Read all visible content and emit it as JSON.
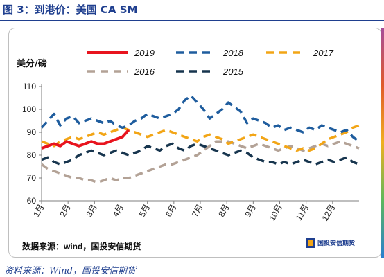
{
  "header": {
    "figure_title": "图 3：到港价：美国 CA SM"
  },
  "footer": {
    "source": "资料来源：Wind，国投安信期货"
  },
  "watermark": {
    "text": "数据来源：wind，国投安信期货",
    "logo_text": "国投安信期货"
  },
  "colors": {
    "title": "#1f3f8f",
    "s2019": "#e8141e",
    "s2018": "#1f5d9e",
    "s2017": "#f2a516",
    "s2016": "#b3a296",
    "s2015": "#17354e"
  },
  "chart_data": {
    "type": "line",
    "unit_label": "美分/磅",
    "xlabel": "",
    "ylabel": "",
    "ylim": [
      60,
      110
    ],
    "yticks": [
      "60",
      "70",
      "80",
      "90",
      "100",
      "110"
    ],
    "xticks": [
      "1月",
      "2月",
      "3月",
      "4月",
      "5月",
      "6月",
      "7月",
      "8月",
      "9月",
      "10月",
      "11月",
      "12月"
    ],
    "x_unit": "weeks since Jan 1",
    "legend_position": "top",
    "series": [
      {
        "name": "2019",
        "style": "solid",
        "color": "#e8141e",
        "x": [
          0,
          1,
          2,
          3,
          4,
          5,
          6,
          7,
          8,
          9,
          10,
          11,
          12,
          13,
          14
        ],
        "y": [
          83,
          84,
          85,
          84,
          86,
          85,
          84,
          85,
          86,
          85,
          85,
          86,
          87,
          88,
          91
        ]
      },
      {
        "name": "2018",
        "style": "dashed",
        "color": "#1f5d9e",
        "x": [
          0,
          1,
          2,
          3,
          4,
          5,
          6,
          7,
          8,
          9,
          10,
          11,
          12,
          13,
          14,
          15,
          16,
          17,
          18,
          19,
          20,
          21,
          22,
          23,
          24,
          25,
          26,
          27,
          28,
          29,
          30,
          31,
          32,
          33,
          34,
          35,
          36,
          37,
          38,
          39,
          40,
          41,
          42,
          43,
          44,
          45,
          46,
          47,
          48,
          49,
          50,
          51
        ],
        "y": [
          92,
          95,
          98,
          93,
          96,
          97,
          94,
          95,
          96,
          95,
          94,
          95,
          93,
          92,
          93,
          95,
          96,
          98,
          97,
          96,
          97,
          98,
          100,
          104,
          106,
          103,
          100,
          96,
          98,
          100,
          103,
          101,
          99,
          94,
          96,
          95,
          94,
          92,
          93,
          91,
          92,
          91,
          90,
          92,
          91,
          93,
          92,
          91,
          90,
          91,
          88,
          86
        ]
      },
      {
        "name": "2017",
        "style": "dashed",
        "color": "#f2a516",
        "x": [
          0,
          1,
          2,
          3,
          4,
          5,
          6,
          7,
          8,
          9,
          10,
          11,
          12,
          13,
          14,
          15,
          16,
          17,
          18,
          19,
          20,
          21,
          22,
          23,
          24,
          25,
          26,
          27,
          28,
          29,
          30,
          31,
          32,
          33,
          34,
          35,
          36,
          37,
          38,
          39,
          40,
          41,
          42,
          43,
          44,
          45,
          46,
          47,
          48,
          49,
          50,
          51
        ],
        "y": [
          86,
          85,
          84,
          86,
          87,
          88,
          87,
          88,
          89,
          90,
          89,
          90,
          91,
          92,
          91,
          90,
          89,
          88,
          89,
          90,
          91,
          90,
          89,
          88,
          87,
          86,
          88,
          89,
          88,
          87,
          85,
          86,
          87,
          88,
          89,
          88,
          87,
          86,
          85,
          84,
          83,
          82,
          83,
          82,
          83,
          85,
          87,
          88,
          89,
          90,
          92,
          93
        ]
      },
      {
        "name": "2016",
        "style": "dashed",
        "color": "#b3a296",
        "x": [
          0,
          1,
          2,
          3,
          4,
          5,
          6,
          7,
          8,
          9,
          10,
          11,
          12,
          13,
          14,
          15,
          16,
          17,
          18,
          19,
          20,
          21,
          22,
          23,
          24,
          25,
          26,
          27,
          28,
          29,
          30,
          31,
          32,
          33,
          34,
          35,
          36,
          37,
          38,
          39,
          40,
          41,
          42,
          43,
          44,
          45,
          46,
          47,
          48,
          49,
          50,
          51
        ],
        "y": [
          76,
          74,
          73,
          72,
          71,
          70,
          70,
          69,
          69,
          68,
          69,
          70,
          69,
          70,
          70,
          71,
          72,
          73,
          74,
          75,
          76,
          76,
          77,
          78,
          79,
          80,
          82,
          84,
          86,
          86,
          86,
          85,
          84,
          83,
          84,
          85,
          84,
          83,
          82,
          83,
          84,
          83,
          82,
          83,
          84,
          85,
          84,
          85,
          86,
          85,
          84,
          83
        ]
      },
      {
        "name": "2015",
        "style": "dashed",
        "color": "#17354e",
        "x": [
          0,
          1,
          2,
          3,
          4,
          5,
          6,
          7,
          8,
          9,
          10,
          11,
          12,
          13,
          14,
          15,
          16,
          17,
          18,
          19,
          20,
          21,
          22,
          23,
          24,
          25,
          26,
          27,
          28,
          29,
          30,
          31,
          32,
          33,
          34,
          35,
          36,
          37,
          38,
          39,
          40,
          41,
          42,
          43,
          44,
          45,
          46,
          47,
          48,
          49,
          50,
          51
        ],
        "y": [
          78,
          79,
          77,
          76,
          77,
          78,
          80,
          81,
          82,
          81,
          80,
          81,
          82,
          81,
          80,
          81,
          82,
          84,
          83,
          82,
          84,
          85,
          83,
          82,
          84,
          85,
          84,
          83,
          82,
          81,
          80,
          81,
          82,
          81,
          79,
          78,
          77,
          77,
          76,
          77,
          76,
          77,
          78,
          77,
          76,
          77,
          78,
          77,
          78,
          79,
          77,
          76
        ]
      }
    ]
  }
}
